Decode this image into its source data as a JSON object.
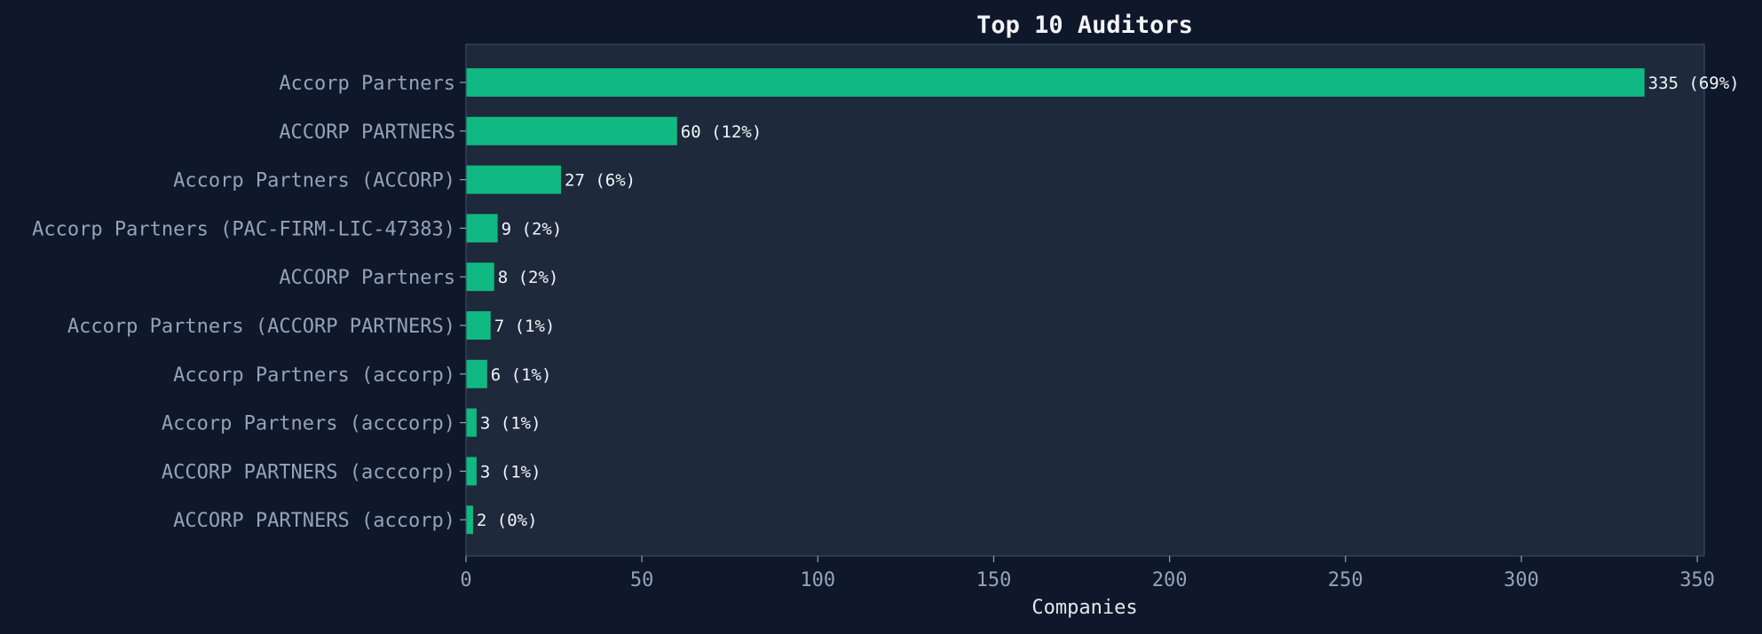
{
  "colors": {
    "background": "#0f172a",
    "plot_background": "#1e293b",
    "plot_border": "#334155",
    "bar": "#10b981",
    "title_text": "#f1f5f9",
    "label_text": "#94a3b8",
    "value_text": "#f1f5f9",
    "xlabel_text": "#e2e8f0"
  },
  "chart_data": {
    "type": "bar",
    "orientation": "horizontal",
    "title": "Top 10 Auditors",
    "xlabel": "Companies",
    "ylabel": "",
    "xlim": [
      0,
      352
    ],
    "xticks": [
      0,
      50,
      100,
      150,
      200,
      250,
      300,
      350
    ],
    "grid": false,
    "categories": [
      "Accorp Partners",
      "ACCORP PARTNERS",
      "Accorp Partners (ACCORP)",
      "Accorp Partners (PAC-FIRM-LIC-47383)",
      "ACCORP Partners",
      "Accorp Partners (ACCORP PARTNERS)",
      "Accorp Partners (accorp)",
      "Accorp Partners (acccorp)",
      "ACCORP PARTNERS (acccorp)",
      "ACCORP PARTNERS (accorp)"
    ],
    "values": [
      335,
      60,
      27,
      9,
      8,
      7,
      6,
      3,
      3,
      2
    ],
    "value_labels": [
      "335 (69%)",
      "60 (12%)",
      "27 (6%)",
      "9 (2%)",
      "8 (2%)",
      "7 (1%)",
      "6 (1%)",
      "3 (1%)",
      "3 (1%)",
      "2 (0%)"
    ]
  }
}
